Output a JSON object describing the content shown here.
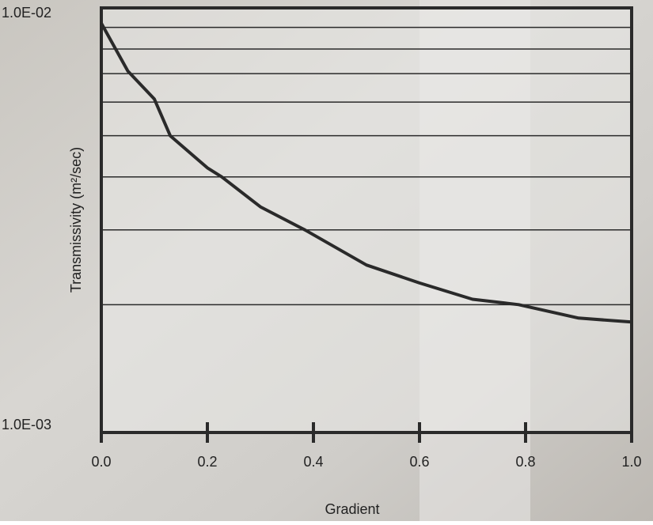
{
  "chart_data": {
    "type": "line",
    "x_label": "Gradient",
    "y_label": "Transmissivity (m²/sec)",
    "x": [
      0,
      0.05,
      0.1,
      0.13,
      0.2,
      0.227,
      0.3,
      0.384,
      0.5,
      0.6,
      0.7,
      0.787,
      0.9,
      1.0
    ],
    "series": [
      {
        "color": "#2a2a2a",
        "values": [
          0.0092,
          0.0071,
          0.0061,
          0.005,
          0.0042,
          0.004,
          0.0034,
          0.003,
          0.00248,
          0.00225,
          0.00206,
          0.002,
          0.00186,
          0.00182
        ]
      }
    ],
    "xlim": [
      0,
      1
    ],
    "xticks": [
      {
        "value": 0,
        "label": "0.0"
      },
      0.2,
      0.4,
      0.6,
      0.8,
      {
        "value": 1,
        "label": "1.0"
      }
    ],
    "ylim": [
      0.001,
      0.01
    ],
    "yticks": [
      {
        "value": 0.001,
        "label": "1.0E-03"
      },
      {
        "value": 0.01,
        "label": "1.0E-02"
      }
    ],
    "yminorticks": [
      0.002,
      0.003,
      0.004,
      0.005,
      0.006,
      0.007,
      0.008,
      0.009
    ],
    "log_y": true,
    "grid": true
  }
}
